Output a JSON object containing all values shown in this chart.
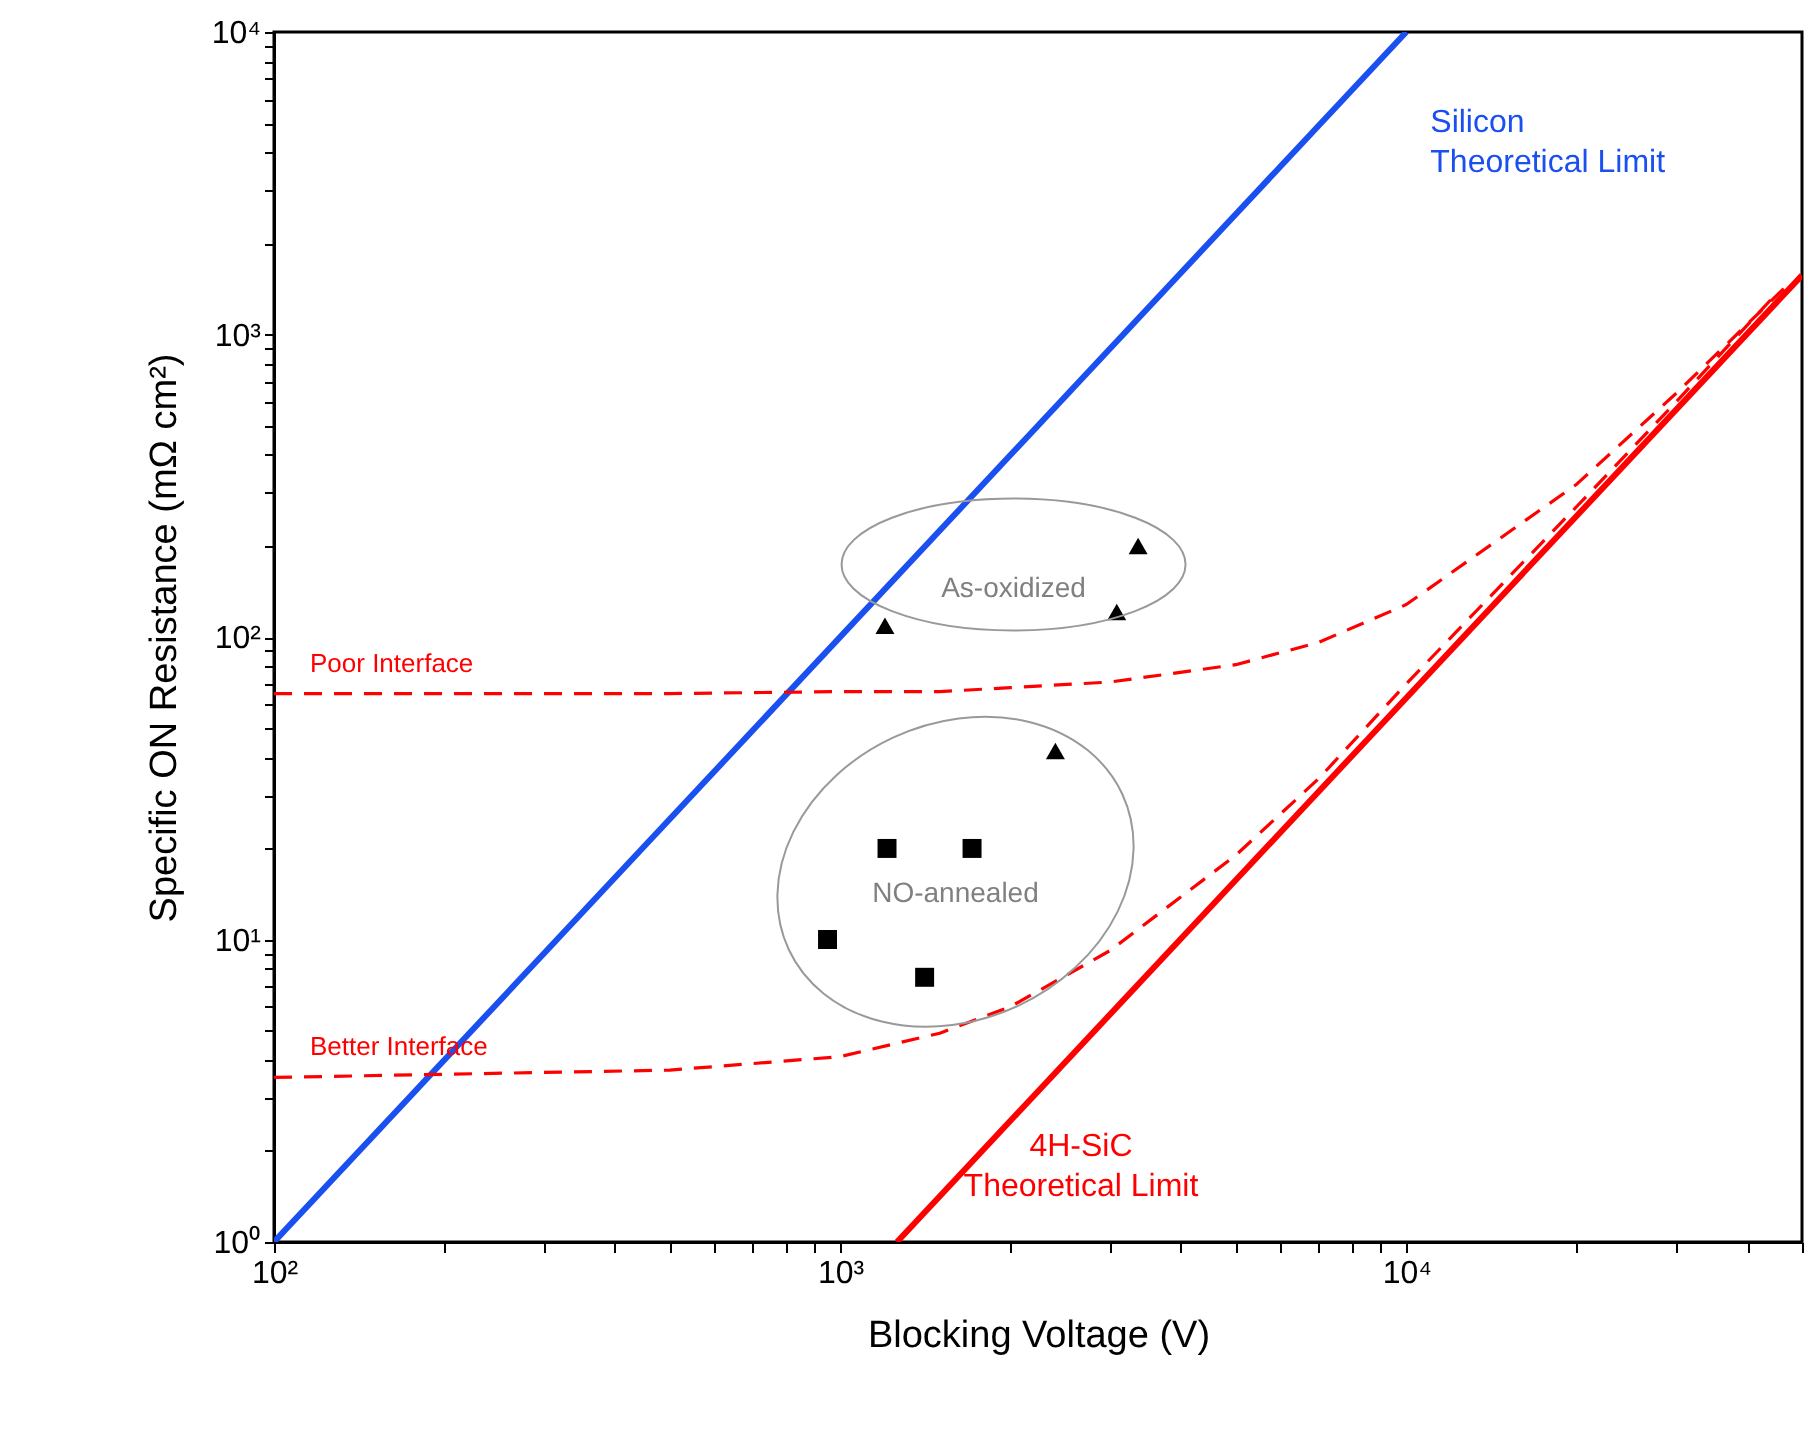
{
  "chart_data": {
    "type": "line",
    "xlabel": "Blocking Voltage (V)",
    "ylabel": "Specific ON Resistance (mΩ cm²)",
    "log": "xy",
    "xlim": [
      100,
      50000
    ],
    "ylim": [
      1,
      10000
    ],
    "xticks": [
      {
        "value": 100,
        "label": "10²"
      },
      {
        "value": 200,
        "label": null
      },
      {
        "value": 300,
        "label": null
      },
      {
        "value": 400,
        "label": null
      },
      {
        "value": 500,
        "label": null
      },
      {
        "value": 600,
        "label": null
      },
      {
        "value": 700,
        "label": null
      },
      {
        "value": 800,
        "label": null
      },
      {
        "value": 900,
        "label": null
      },
      {
        "value": 1000,
        "label": "10³"
      },
      {
        "value": 2000,
        "label": null
      },
      {
        "value": 3000,
        "label": null
      },
      {
        "value": 4000,
        "label": null
      },
      {
        "value": 5000,
        "label": null
      },
      {
        "value": 6000,
        "label": null
      },
      {
        "value": 7000,
        "label": null
      },
      {
        "value": 8000,
        "label": null
      },
      {
        "value": 9000,
        "label": null
      },
      {
        "value": 10000,
        "label": "10⁴"
      },
      {
        "value": 20000,
        "label": null
      },
      {
        "value": 30000,
        "label": null
      },
      {
        "value": 40000,
        "label": null
      },
      {
        "value": 50000,
        "label": null
      }
    ],
    "yticks": [
      {
        "value": 1,
        "label": "10⁰"
      },
      {
        "value": 2,
        "label": null
      },
      {
        "value": 3,
        "label": null
      },
      {
        "value": 4,
        "label": null
      },
      {
        "value": 5,
        "label": null
      },
      {
        "value": 6,
        "label": null
      },
      {
        "value": 7,
        "label": null
      },
      {
        "value": 8,
        "label": null
      },
      {
        "value": 9,
        "label": null
      },
      {
        "value": 10,
        "label": "10¹"
      },
      {
        "value": 20,
        "label": null
      },
      {
        "value": 30,
        "label": null
      },
      {
        "value": 40,
        "label": null
      },
      {
        "value": 50,
        "label": null
      },
      {
        "value": 60,
        "label": null
      },
      {
        "value": 70,
        "label": null
      },
      {
        "value": 80,
        "label": null
      },
      {
        "value": 90,
        "label": null
      },
      {
        "value": 100,
        "label": "10²"
      },
      {
        "value": 200,
        "label": null
      },
      {
        "value": 300,
        "label": null
      },
      {
        "value": 400,
        "label": null
      },
      {
        "value": 500,
        "label": null
      },
      {
        "value": 600,
        "label": null
      },
      {
        "value": 700,
        "label": null
      },
      {
        "value": 800,
        "label": null
      },
      {
        "value": 900,
        "label": null
      },
      {
        "value": 1000,
        "label": "10³"
      },
      {
        "value": 2000,
        "label": null
      },
      {
        "value": 3000,
        "label": null
      },
      {
        "value": 4000,
        "label": null
      },
      {
        "value": 5000,
        "label": null
      },
      {
        "value": 6000,
        "label": null
      },
      {
        "value": 7000,
        "label": null
      },
      {
        "value": 8000,
        "label": null
      },
      {
        "value": 9000,
        "label": null
      },
      {
        "value": 10000,
        "label": "10⁴"
      }
    ],
    "grid": false,
    "legend": false,
    "series": [
      {
        "name": "Silicon\nTheoretical Limit",
        "color": "#1a4ff0",
        "line_style": "solid",
        "x": [
          100,
          10000
        ],
        "values": [
          1,
          10000
        ]
      },
      {
        "name": "4H-SiC\nTheoretical Limit",
        "color": "#ff0000",
        "line_style": "solid",
        "x": [
          1260,
          50000
        ],
        "values": [
          1,
          1570
        ]
      },
      {
        "name": "Poor Interface",
        "color": "#ff0000",
        "line_style": "dashed",
        "x": [
          100,
          500,
          1000,
          1500,
          2000,
          3000,
          5000,
          7000,
          10000,
          20000,
          30000,
          47000
        ],
        "values": [
          65,
          65,
          66,
          66,
          68,
          71,
          81,
          96,
          128,
          320,
          640,
          1450
        ]
      },
      {
        "name": "Better Interface",
        "color": "#ff0000",
        "line_style": "dashed",
        "x": [
          100,
          500,
          1000,
          1500,
          2000,
          3000,
          5000,
          7000,
          10000,
          20000,
          30000,
          44000
        ],
        "values": [
          3.5,
          3.7,
          4.1,
          4.9,
          6,
          9.2,
          19,
          34,
          70,
          270,
          600,
          1300
        ]
      },
      {
        "type": "scatter",
        "marker": "triangle",
        "color": "#000000",
        "x": [
          1200,
          2400,
          3080,
          3360
        ],
        "values": [
          109,
          42,
          121,
          200
        ]
      },
      {
        "type": "scatter",
        "marker": "square",
        "color": "#000000",
        "x": [
          950,
          1210,
          1710,
          1410
        ],
        "values": [
          10,
          20,
          20,
          7.5
        ]
      }
    ],
    "annotations": [
      "As-oxidized",
      "NO-annealed"
    ]
  }
}
